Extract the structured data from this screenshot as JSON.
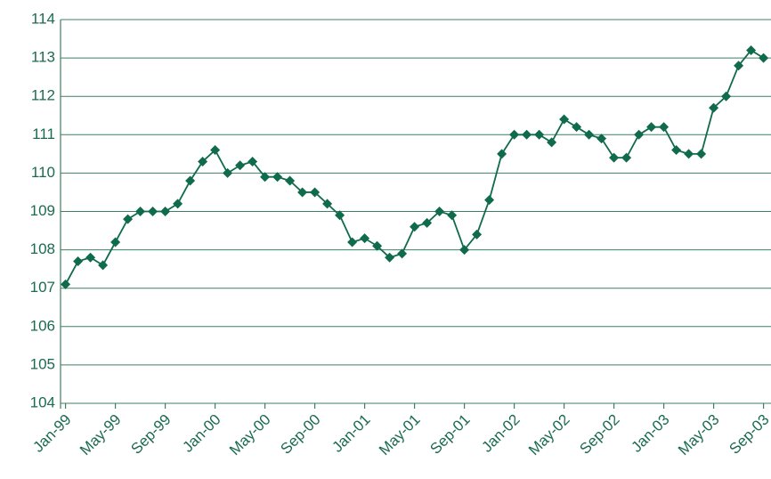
{
  "chart_data": {
    "type": "line",
    "color": "#0f6b4c",
    "grid": true,
    "categories": [
      "Jan-99",
      null,
      null,
      null,
      "May-99",
      null,
      null,
      null,
      "Sep-99",
      null,
      null,
      null,
      "Jan-00",
      null,
      null,
      null,
      "May-00",
      null,
      null,
      null,
      "Sep-00",
      null,
      null,
      null,
      "Jan-01",
      null,
      null,
      null,
      "May-01",
      null,
      null,
      null,
      "Sep-01",
      null,
      null,
      null,
      "Jan-02",
      null,
      null,
      null,
      "May-02",
      null,
      null,
      null,
      "Sep-02",
      null,
      null,
      null,
      "Jan-03",
      null,
      null,
      null,
      "May-03",
      null,
      null,
      null,
      "Sep-03"
    ],
    "values": [
      107.1,
      107.7,
      107.8,
      107.6,
      108.2,
      108.8,
      109.0,
      109.0,
      109.0,
      109.2,
      109.8,
      110.3,
      110.6,
      110.0,
      110.2,
      110.3,
      109.9,
      109.9,
      109.8,
      109.5,
      109.5,
      109.2,
      108.9,
      108.2,
      108.3,
      108.1,
      107.8,
      107.9,
      108.6,
      108.7,
      109.0,
      108.9,
      108.0,
      108.4,
      109.3,
      110.5,
      111.0,
      111.0,
      111.0,
      110.8,
      111.4,
      111.2,
      111.0,
      110.9,
      110.4,
      110.4,
      111.0,
      111.2,
      111.2,
      110.6,
      110.5,
      110.5,
      111.7,
      112.0,
      112.8,
      113.2,
      113.0
    ],
    "ylim": [
      104,
      114
    ],
    "yticks": [
      104,
      105,
      106,
      107,
      108,
      109,
      110,
      111,
      112,
      113,
      114
    ]
  }
}
